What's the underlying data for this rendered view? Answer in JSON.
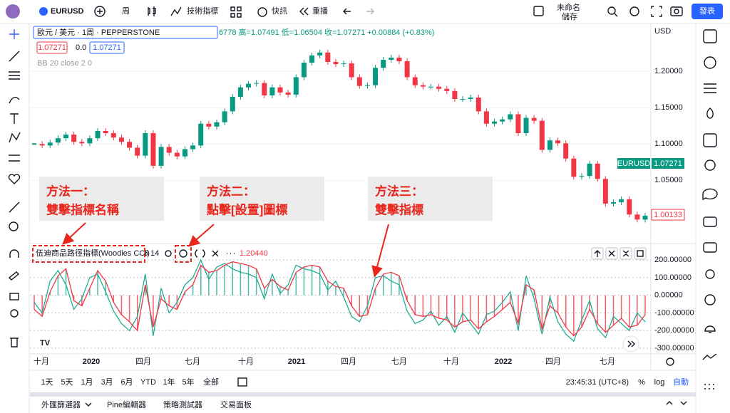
{
  "toolbar": {
    "symbol": "EURUSD",
    "interval": "周",
    "indicators": "技術指標",
    "alerts": "快訊",
    "replay": "重播",
    "layout_name": "未命名",
    "save": "儲存",
    "publish": "發表"
  },
  "legend": {
    "title": "歐元 / 美元 · 1周 · PEPPERSTONE",
    "ohlc": "6778 高=1.07491 低=1.06504 收=1.07271 +0.00884 (+0.83%)",
    "sell": "1.07271",
    "spread": "0.0",
    "buy": "1.07271",
    "bb": "BB 20 close 2 0"
  },
  "price_axis": {
    "currency": "USD",
    "symbol_tag": "EURUSD",
    "last_tag": "1.07271",
    "close_tag": "1.00133"
  },
  "chart_data": [
    {
      "type": "candlestick",
      "values": [
        1.1,
        1.098,
        1.102,
        1.108,
        1.113,
        1.103,
        1.101,
        1.108,
        1.118,
        1.115,
        1.109,
        1.103,
        1.095,
        1.084,
        1.115,
        1.07,
        1.096,
        1.088,
        1.083,
        1.093,
        1.098,
        1.128,
        1.124,
        1.13,
        1.145,
        1.165,
        1.178,
        1.183,
        1.184,
        1.167,
        1.178,
        1.171,
        1.168,
        1.192,
        1.212,
        1.222,
        1.226,
        1.213,
        1.21,
        1.211,
        1.192,
        1.18,
        1.181,
        1.205,
        1.216,
        1.219,
        1.214,
        1.192,
        1.181,
        1.179,
        1.179,
        1.176,
        1.173,
        1.162,
        1.162,
        1.164,
        1.145,
        1.128,
        1.131,
        1.134,
        1.141,
        1.115,
        1.136,
        1.132,
        1.092,
        1.105,
        1.101,
        1.08,
        1.055,
        1.056,
        1.073,
        1.052,
        1.018,
        1.02,
        1.024,
        1.003,
        0.996,
        1.00133
      ],
      "up_color": "#089981",
      "down_color": "#f23645",
      "ylim": [
        0.965,
        1.264
      ],
      "yticks": [
        {
          "value": 1.2,
          "label": "1.20000"
        },
        {
          "value": 1.15,
          "label": "1.15000"
        },
        {
          "value": 1.1,
          "label": "1.10000"
        },
        {
          "value": 1.05,
          "label": "1.05000"
        }
      ]
    },
    {
      "type": "line",
      "indicator": "伍迪商品路徑指標(Woodies CCI)",
      "params": "6 14",
      "last_value": "1.20440",
      "series": [
        {
          "color": "#f23645",
          "values": [
            -80,
            -120,
            20,
            110,
            150,
            -30,
            -60,
            40,
            140,
            80,
            -40,
            -110,
            -150,
            -200,
            60,
            -180,
            -20,
            -60,
            -80,
            20,
            60,
            170,
            130,
            140,
            170,
            190,
            180,
            170,
            150,
            40,
            90,
            50,
            30,
            130,
            160,
            170,
            160,
            80,
            50,
            40,
            -60,
            -120,
            -110,
            40,
            120,
            130,
            110,
            -30,
            -110,
            -120,
            -110,
            -130,
            -140,
            -180,
            -150,
            -140,
            -190,
            -150,
            -120,
            -80,
            -40,
            -160,
            60,
            30,
            -190,
            -60,
            -100,
            -180,
            -230,
            -180,
            -80,
            -160,
            -210,
            -170,
            -130,
            -180,
            -170,
            -110
          ]
        },
        {
          "color": "#22ab94",
          "values": [
            -40,
            -100,
            80,
            140,
            60,
            -80,
            -20,
            100,
            120,
            20,
            -90,
            -160,
            -200,
            -120,
            120,
            -230,
            40,
            -100,
            -40,
            60,
            100,
            200,
            90,
            160,
            180,
            150,
            130,
            120,
            100,
            -20,
            120,
            10,
            60,
            170,
            150,
            140,
            120,
            30,
            80,
            -10,
            -120,
            -150,
            -60,
            100,
            110,
            80,
            60,
            -90,
            -160,
            -140,
            -90,
            -170,
            -120,
            -210,
            -100,
            -160,
            -220,
            -110,
            -90,
            -40,
            20,
            -200,
            110,
            -20,
            -220,
            -10,
            -150,
            -220,
            -260,
            -140,
            -30,
            -190,
            -240,
            -120,
            -160,
            -200,
            -100,
            -150
          ]
        }
      ],
      "ylim": [
        -324,
        281
      ],
      "yticks": [
        {
          "value": 200,
          "label": "200.00000"
        },
        {
          "value": 100,
          "label": "100.00000"
        },
        {
          "value": 0,
          "label": "0.00000"
        },
        {
          "value": -100,
          "label": "-100.00000"
        },
        {
          "value": -200,
          "label": "-200.00000"
        },
        {
          "value": -300,
          "label": "-300.00000"
        }
      ]
    }
  ],
  "time_labels": [
    "十月",
    "2020",
    "四月",
    "七月",
    "十月",
    "2021",
    "四月",
    "七月",
    "十月",
    "2022",
    "四月",
    "七月"
  ],
  "ranges": [
    "1天",
    "5天",
    "1月",
    "3月",
    "6月",
    "YTD",
    "1年",
    "5年",
    "全部"
  ],
  "clock": "23:45:31 (UTC+8)",
  "scale_buttons": [
    "%",
    "log",
    "自動"
  ],
  "tabs": [
    "外匯篩選器",
    "Pine編輯器",
    "策略測試器",
    "交易面板"
  ],
  "annotations": [
    {
      "lines": [
        "方法一：",
        "雙擊指標名稱"
      ]
    },
    {
      "lines": [
        "方法二：",
        "點擊[設置]圖標"
      ]
    },
    {
      "lines": [
        "方法三：",
        "雙擊指標"
      ]
    }
  ]
}
